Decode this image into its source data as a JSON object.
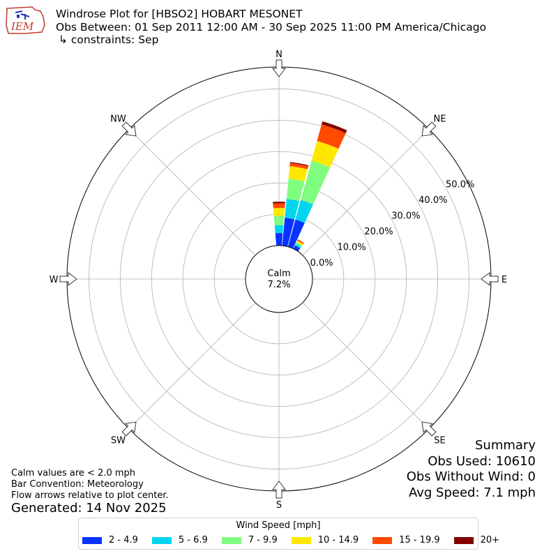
{
  "header": {
    "title_line1": "Windrose Plot for [HBSO2] HOBART MESONET",
    "title_line2": "Obs Between: 01 Sep 2011 12:00 AM - 30 Sep 2025 11:00 PM America/Chicago",
    "title_line3": "↳ constraints: Sep",
    "logo_text": "IEM"
  },
  "summary": {
    "heading": "Summary",
    "obs_used": "Obs Used: 10610",
    "obs_without_wind": "Obs Without Wind: 0",
    "avg_speed": "Avg Speed: 7.1 mph"
  },
  "notes": {
    "calm": "Calm values are < 2.0 mph",
    "bar_convention": "Bar Convention: Meteorology",
    "flow_arrows": "Flow arrows relative to plot center.",
    "generated": "Generated: 14 Nov 2025"
  },
  "legend": {
    "title": "Wind Speed [mph]",
    "items": [
      {
        "label": "2 - 4.9",
        "color": "#0a32ff"
      },
      {
        "label": "5 - 6.9",
        "color": "#00d5f0"
      },
      {
        "label": "7 - 9.9",
        "color": "#7ffd7f"
      },
      {
        "label": "10 - 14.9",
        "color": "#ffe800"
      },
      {
        "label": "15 - 19.9",
        "color": "#ff4a00"
      },
      {
        "label": "20+",
        "color": "#800000"
      }
    ]
  },
  "chart_data": {
    "type": "windrose",
    "calm_label": "Calm",
    "calm_percent_label": "7.2%",
    "direction_labels": [
      "N",
      "NE",
      "E",
      "SE",
      "S",
      "SW",
      "W",
      "NW"
    ],
    "radial_ticks": [
      0,
      10,
      20,
      30,
      40,
      50
    ],
    "radial_tick_labels": [
      "0.0%",
      "10.0%",
      "20.0%",
      "30.0%",
      "40.0%",
      "50.0%"
    ],
    "rlim": [
      0,
      57
    ],
    "grid": true,
    "speed_bins": [
      "2 - 4.9",
      "5 - 6.9",
      "7 - 9.9",
      "10 - 14.9",
      "15 - 19.9",
      "20+"
    ],
    "sectors": [
      {
        "direction_deg": 0,
        "values": [
          4.0,
          2.5,
          3.0,
          2.5,
          1.5,
          0.5
        ]
      },
      {
        "direction_deg": 10,
        "values": [
          9.0,
          6.0,
          6.5,
          4.0,
          1.0,
          0.3
        ]
      },
      {
        "direction_deg": 20,
        "values": [
          9.0,
          6.5,
          13.0,
          6.5,
          5.5,
          1.0
        ]
      },
      {
        "direction_deg": 30,
        "values": [
          1.2,
          0.6,
          0.5,
          0.6,
          0.3,
          0.1
        ]
      }
    ]
  }
}
